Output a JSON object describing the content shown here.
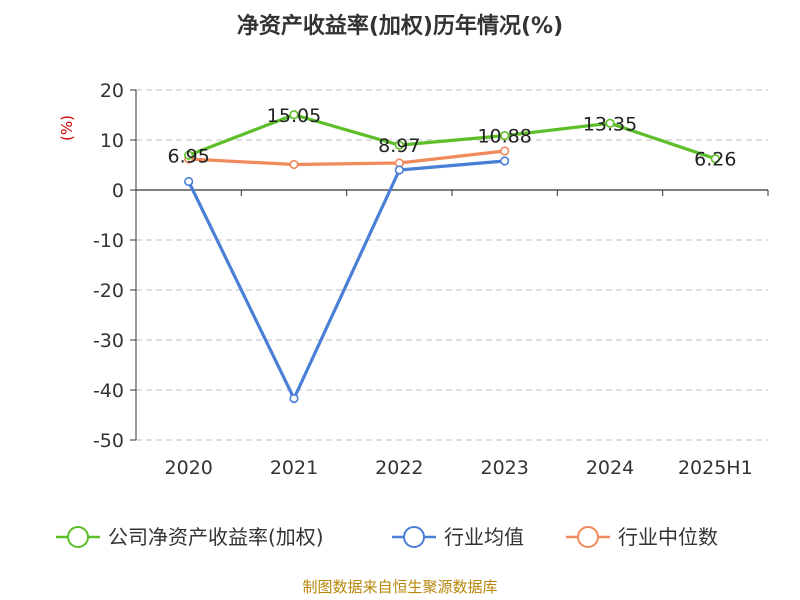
{
  "chart_data": {
    "type": "line",
    "title": "净资产收益率(加权)历年情况(%)",
    "ylabel": "(%)",
    "xlabel": "",
    "categories": [
      "2020",
      "2021",
      "2022",
      "2023",
      "2024",
      "2025H1"
    ],
    "ylim": [
      -50,
      20
    ],
    "yticks": [
      "20",
      "10",
      "0",
      "-10",
      "-20",
      "-30",
      "-40",
      "-50"
    ],
    "grid": true,
    "legend_position": "bottom",
    "series": [
      {
        "name": "公司净资产收益率(加权)",
        "color": "#5cbf2a",
        "values": [
          6.95,
          15.05,
          8.97,
          10.88,
          13.35,
          6.26
        ],
        "labels": [
          "6.95",
          "15.05",
          "8.97",
          "10.88",
          "13.35",
          "6.26"
        ]
      },
      {
        "name": "行业均值",
        "color": "#4a7fd6",
        "values": [
          1.7,
          -41.7,
          4.0,
          5.8,
          null,
          null
        ]
      },
      {
        "name": "行业中位数",
        "color": "#f08a5d",
        "values": [
          6.2,
          5.1,
          5.4,
          7.8,
          null,
          null
        ]
      }
    ],
    "source": "制图数据来自恒生聚源数据库"
  }
}
